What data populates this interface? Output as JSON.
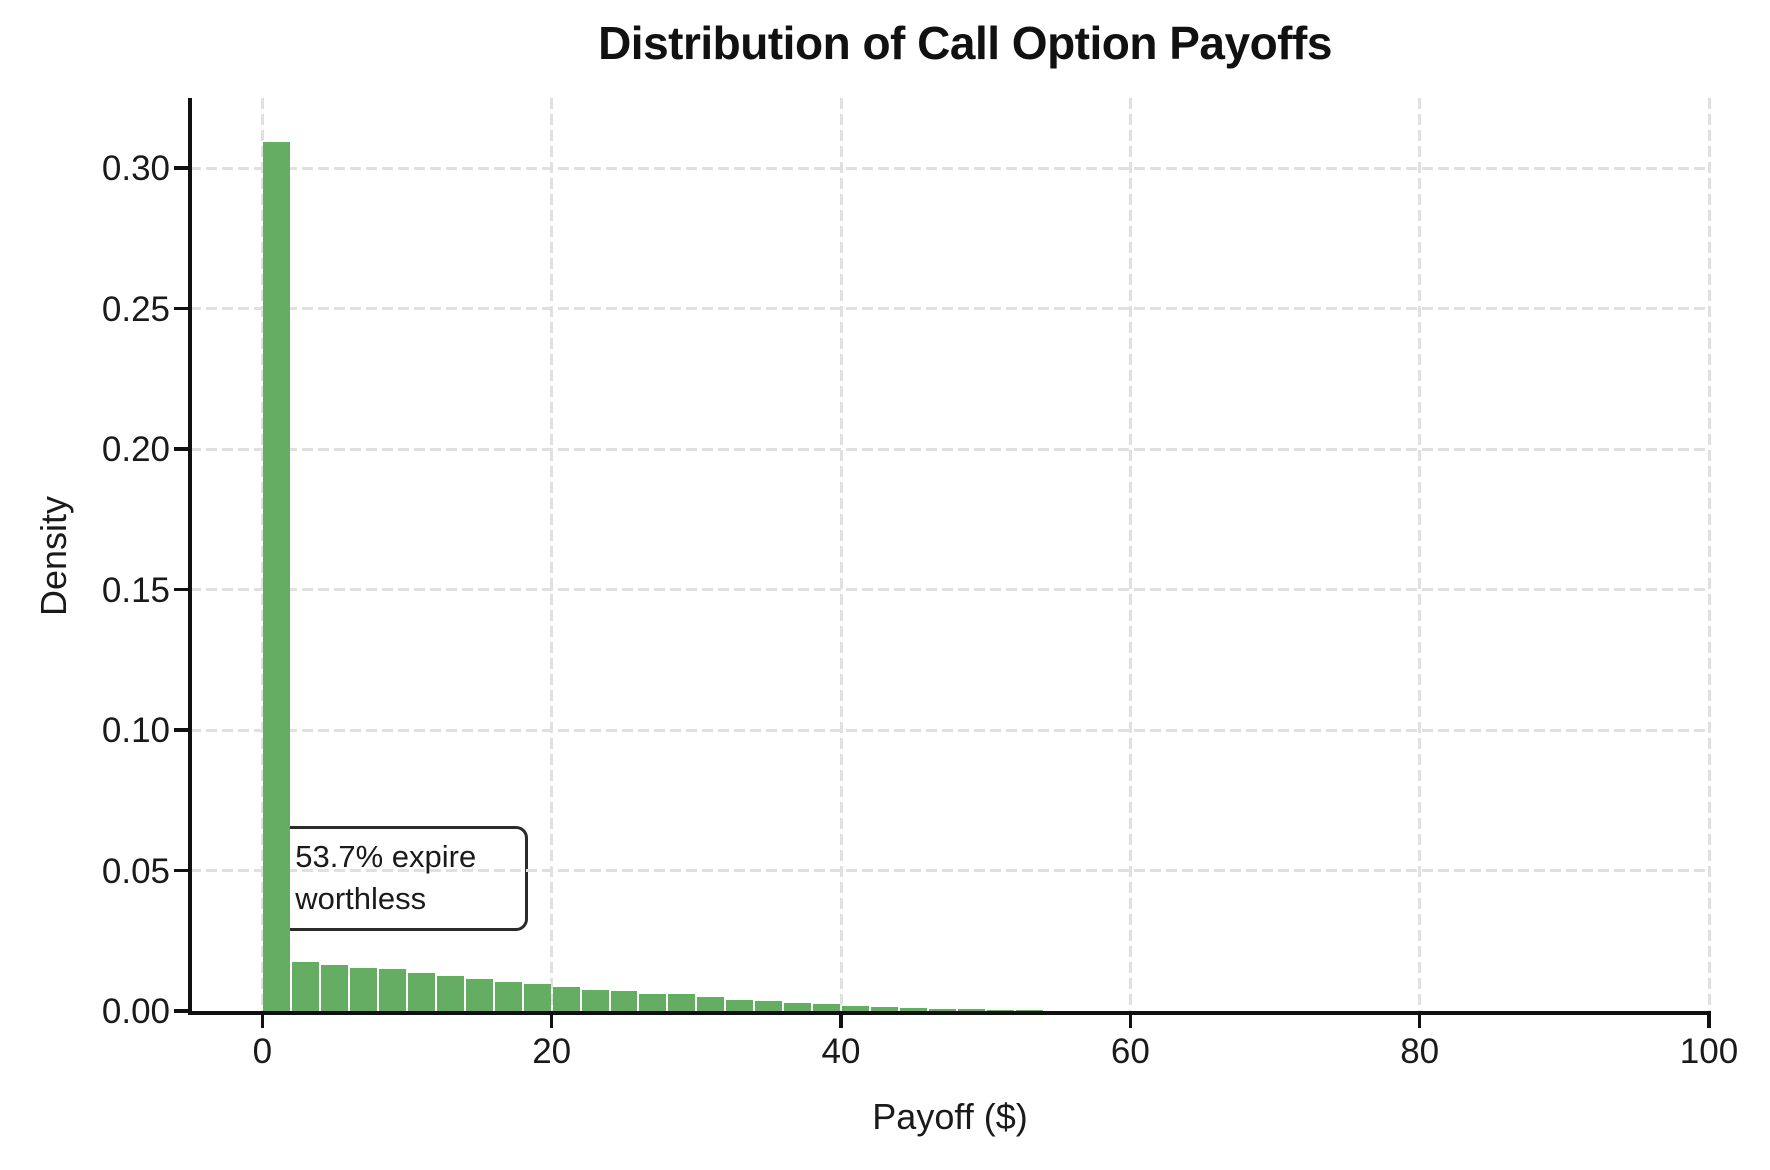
{
  "title": "Distribution of Call Option Payoffs",
  "annotation": {
    "text": "53.7% expire\nworthless"
  },
  "chart_data": {
    "type": "bar",
    "subtype": "histogram",
    "title": "Distribution of Call Option Payoffs",
    "xlabel": "Payoff ($)",
    "ylabel": "Density",
    "xlim": [
      -5,
      100
    ],
    "ylim": [
      0,
      0.325
    ],
    "grid": true,
    "legend": "none",
    "xticks": [
      0,
      20,
      40,
      60,
      80,
      100
    ],
    "ytick_values": [
      0,
      0.05,
      0.1,
      0.15,
      0.2,
      0.25,
      0.3
    ],
    "ytick_labels": [
      "0.00",
      "0.05",
      "0.10",
      "0.15",
      "0.20",
      "0.25",
      "0.30"
    ],
    "bin_width": 2,
    "bin_starts": [
      0,
      2,
      4,
      6,
      8,
      10,
      12,
      14,
      16,
      18,
      20,
      22,
      24,
      26,
      28,
      30,
      32,
      34,
      36,
      38,
      40,
      42,
      44,
      46,
      48,
      50,
      52,
      54,
      56,
      58,
      60,
      62
    ],
    "densities": [
      0.31,
      0.0182,
      0.017,
      0.0161,
      0.0157,
      0.0141,
      0.013,
      0.0122,
      0.0112,
      0.0103,
      0.0093,
      0.0083,
      0.0077,
      0.0068,
      0.0068,
      0.0056,
      0.0047,
      0.0042,
      0.0034,
      0.0031,
      0.0025,
      0.0022,
      0.0019,
      0.0016,
      0.0013,
      0.0011,
      0.0009,
      0.0007,
      0.0005,
      0.0003,
      0.0002,
      0.0001
    ],
    "annotation": {
      "text": "53.7% expire\nworthless",
      "x": 1.1,
      "y": 0.066
    },
    "colors": {
      "bar": "#64ad63",
      "bar_edge": "#ffffff",
      "grid": "#e0e0e0",
      "axis": "#111111",
      "text": "#1a1a1a",
      "background": "#ffffff"
    }
  }
}
